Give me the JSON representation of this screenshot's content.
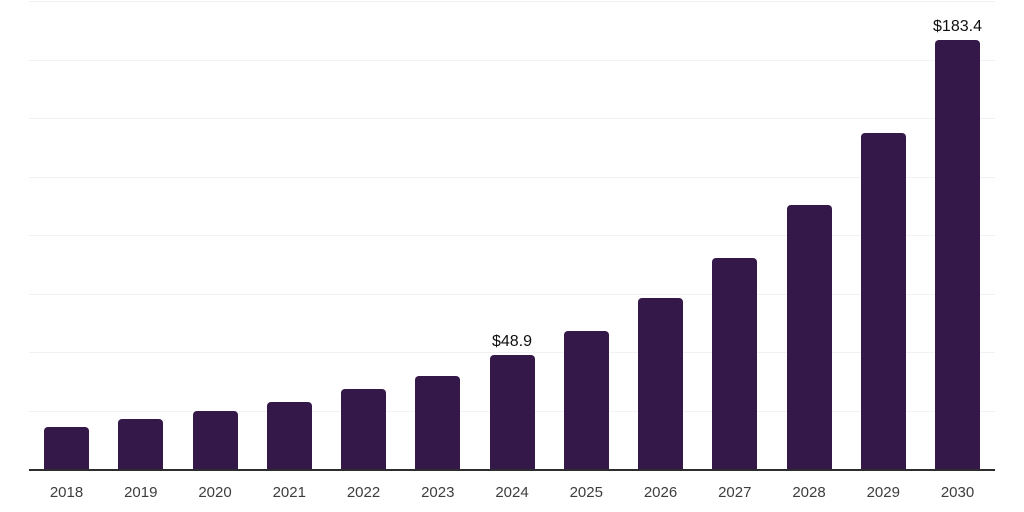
{
  "chart_data": {
    "type": "bar",
    "title": "",
    "xlabel": "",
    "ylabel": "",
    "categories": [
      "2018",
      "2019",
      "2020",
      "2021",
      "2022",
      "2023",
      "2024",
      "2025",
      "2026",
      "2027",
      "2028",
      "2029",
      "2030"
    ],
    "values": [
      18.1,
      21.5,
      24.7,
      28.8,
      34.3,
      39.7,
      48.9,
      59.0,
      72.9,
      90.0,
      112.8,
      143.6,
      183.4
    ],
    "bar_labels": {
      "2024": "$48.9",
      "2030": "$183.4"
    },
    "ylim": [
      0,
      200
    ],
    "gridline_step": 25,
    "grid": true,
    "legend": false,
    "colors": {
      "bar": "#35184a",
      "axis": "#2d2d2d",
      "gridline": "#f2f1f3",
      "value_label": "#0f0f0f",
      "tick_label": "#3d3d3d",
      "background": "#ffffff"
    }
  }
}
